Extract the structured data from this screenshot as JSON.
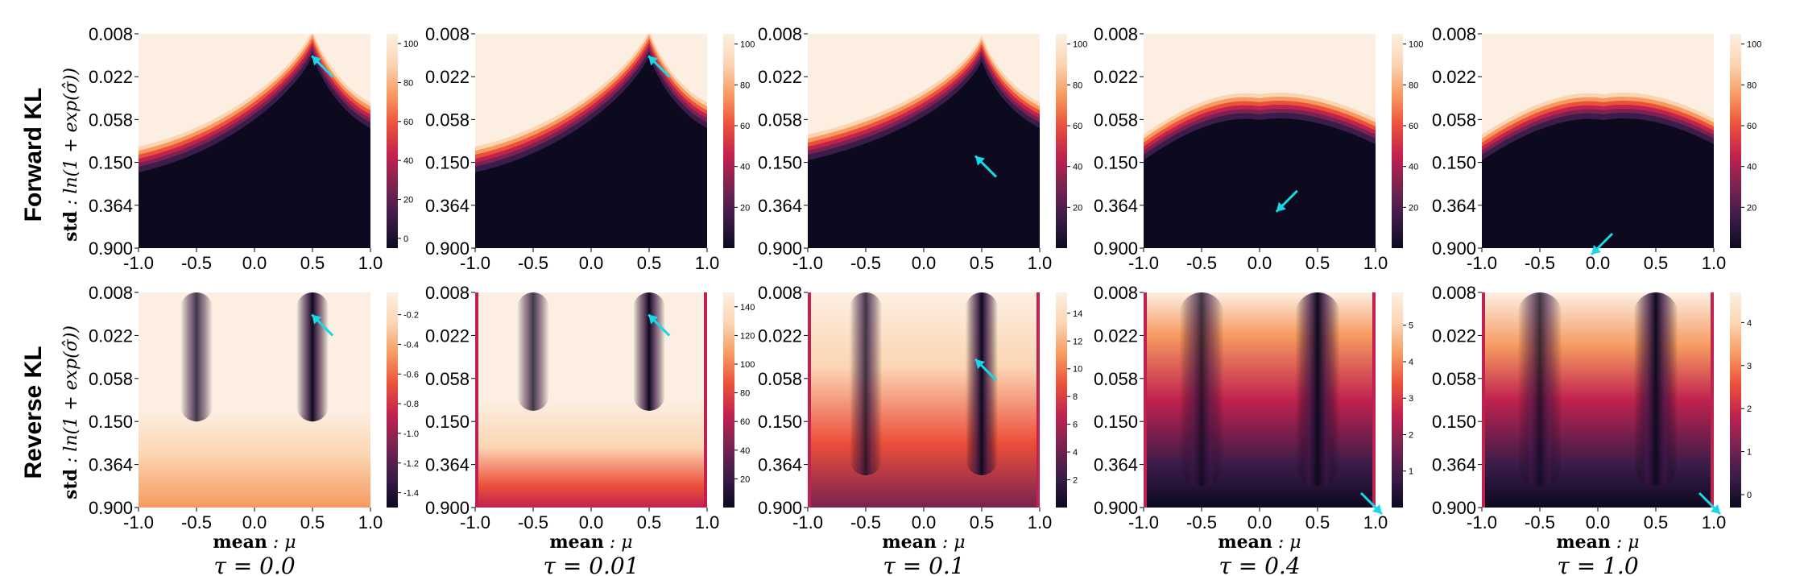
{
  "rows": [
    {
      "label": "Forward KL"
    },
    {
      "label": "Reverse KL"
    }
  ],
  "ylabel_bold": "std",
  "ylabel_math": " : ln(1 + exp(σ̂))",
  "xlabel_bold": "mean",
  "xlabel_math": " : μ",
  "tau_labels": [
    "τ = 0.0",
    "τ = 0.01",
    "τ = 0.1",
    "τ = 0.4",
    "τ = 1.0"
  ],
  "arrow_color": "#19d8e6",
  "colormap": [
    "#0d0a1f",
    "#3b1c4a",
    "#7a2350",
    "#c0224f",
    "#ec4f3a",
    "#f79a60",
    "#fbd5b3",
    "#fcefe2"
  ],
  "chart_data": [
    {
      "type": "heatmap",
      "row": "Forward KL",
      "tau": 0.0,
      "xlim": [
        -1.0,
        1.0
      ],
      "x_ticks": [
        "-1.0",
        "-0.5",
        "0.0",
        "0.5",
        "1.0"
      ],
      "y_ticks": [
        "0.008",
        "0.022",
        "0.058",
        "0.150",
        "0.364",
        "0.900"
      ],
      "colorbar": {
        "min": -5,
        "max": 105,
        "ticks": [
          "0",
          "20",
          "40",
          "60",
          "80",
          "100"
        ]
      },
      "arrow": {
        "x": 0.55,
        "y": "0.015",
        "direction": "up-left"
      }
    },
    {
      "type": "heatmap",
      "row": "Forward KL",
      "tau": 0.01,
      "xlim": [
        -1.0,
        1.0
      ],
      "x_ticks": [
        "-1.0",
        "-0.5",
        "0.0",
        "0.5",
        "1.0"
      ],
      "y_ticks": [
        "0.008",
        "0.022",
        "0.058",
        "0.150",
        "0.364",
        "0.900"
      ],
      "colorbar": {
        "min": 0,
        "max": 105,
        "ticks": [
          "20",
          "40",
          "60",
          "80",
          "100"
        ]
      },
      "arrow": {
        "x": 0.55,
        "y": "0.015",
        "direction": "up-left"
      }
    },
    {
      "type": "heatmap",
      "row": "Forward KL",
      "tau": 0.1,
      "xlim": [
        -1.0,
        1.0
      ],
      "x_ticks": [
        "-1.0",
        "-0.5",
        "0.0",
        "0.5",
        "1.0"
      ],
      "y_ticks": [
        "0.008",
        "0.022",
        "0.058",
        "0.150",
        "0.364",
        "0.900"
      ],
      "colorbar": {
        "min": 0,
        "max": 105,
        "ticks": [
          "20",
          "40",
          "60",
          "80",
          "100"
        ]
      },
      "arrow": {
        "x": 0.5,
        "y": "0.150",
        "direction": "up-left"
      }
    },
    {
      "type": "heatmap",
      "row": "Forward KL",
      "tau": 0.4,
      "xlim": [
        -1.0,
        1.0
      ],
      "x_ticks": [
        "-1.0",
        "-0.5",
        "0.0",
        "0.5",
        "1.0"
      ],
      "y_ticks": [
        "0.008",
        "0.022",
        "0.058",
        "0.150",
        "0.364",
        "0.900"
      ],
      "colorbar": {
        "min": 0,
        "max": 105,
        "ticks": [
          "20",
          "40",
          "60",
          "80",
          "100"
        ]
      },
      "arrow": {
        "x": 0.2,
        "y": "0.364",
        "direction": "down-left"
      }
    },
    {
      "type": "heatmap",
      "row": "Forward KL",
      "tau": 1.0,
      "xlim": [
        -1.0,
        1.0
      ],
      "x_ticks": [
        "-1.0",
        "-0.5",
        "0.0",
        "0.5",
        "1.0"
      ],
      "y_ticks": [
        "0.008",
        "0.022",
        "0.058",
        "0.150",
        "0.364",
        "0.900"
      ],
      "colorbar": {
        "min": 0,
        "max": 105,
        "ticks": [
          "20",
          "40",
          "60",
          "80",
          "100"
        ]
      },
      "arrow": {
        "x": 0.0,
        "y": "0.900",
        "direction": "down-left"
      }
    },
    {
      "type": "heatmap",
      "row": "Reverse KL",
      "tau": 0.0,
      "xlim": [
        -1.0,
        1.0
      ],
      "x_ticks": [
        "-1.0",
        "-0.5",
        "0.0",
        "0.5",
        "1.0"
      ],
      "y_ticks": [
        "0.008",
        "0.022",
        "0.058",
        "0.150",
        "0.364",
        "0.900"
      ],
      "colorbar": {
        "min": -1.5,
        "max": -0.05,
        "ticks": [
          "-0.2",
          "-0.4",
          "-0.6",
          "-0.8",
          "-1.0",
          "-1.2",
          "-1.4"
        ]
      },
      "arrow": {
        "x": 0.55,
        "y": "0.015",
        "direction": "up-left"
      }
    },
    {
      "type": "heatmap",
      "row": "Reverse KL",
      "tau": 0.01,
      "xlim": [
        -1.0,
        1.0
      ],
      "x_ticks": [
        "-1.0",
        "-0.5",
        "0.0",
        "0.5",
        "1.0"
      ],
      "y_ticks": [
        "0.008",
        "0.022",
        "0.058",
        "0.150",
        "0.364",
        "0.900"
      ],
      "colorbar": {
        "min": 0,
        "max": 150,
        "ticks": [
          "20",
          "40",
          "60",
          "80",
          "100",
          "120",
          "140"
        ]
      },
      "arrow": {
        "x": 0.55,
        "y": "0.015",
        "direction": "up-left"
      }
    },
    {
      "type": "heatmap",
      "row": "Reverse KL",
      "tau": 0.1,
      "xlim": [
        -1.0,
        1.0
      ],
      "x_ticks": [
        "-1.0",
        "-0.5",
        "0.0",
        "0.5",
        "1.0"
      ],
      "y_ticks": [
        "0.008",
        "0.022",
        "0.058",
        "0.150",
        "0.364",
        "0.900"
      ],
      "colorbar": {
        "min": 0,
        "max": 15.5,
        "ticks": [
          "2",
          "4",
          "6",
          "8",
          "10",
          "12",
          "14"
        ]
      },
      "arrow": {
        "x": 0.5,
        "y": "0.040",
        "direction": "up-left"
      }
    },
    {
      "type": "heatmap",
      "row": "Reverse KL",
      "tau": 0.4,
      "xlim": [
        -1.0,
        1.0
      ],
      "x_ticks": [
        "-1.0",
        "-0.5",
        "0.0",
        "0.5",
        "1.0"
      ],
      "y_ticks": [
        "0.008",
        "0.022",
        "0.058",
        "0.150",
        "0.364",
        "0.900"
      ],
      "colorbar": {
        "min": 0,
        "max": 5.9,
        "ticks": [
          "1",
          "2",
          "3",
          "4",
          "5"
        ]
      },
      "arrow": {
        "x": 1.0,
        "y": "0.900",
        "direction": "down-right"
      }
    },
    {
      "type": "heatmap",
      "row": "Reverse KL",
      "tau": 1.0,
      "xlim": [
        -1.0,
        1.0
      ],
      "x_ticks": [
        "-1.0",
        "-0.5",
        "0.0",
        "0.5",
        "1.0"
      ],
      "y_ticks": [
        "0.008",
        "0.022",
        "0.058",
        "0.150",
        "0.364",
        "0.900"
      ],
      "colorbar": {
        "min": -0.3,
        "max": 4.7,
        "ticks": [
          "0",
          "1",
          "2",
          "3",
          "4"
        ]
      },
      "arrow": {
        "x": 1.0,
        "y": "0.900",
        "direction": "down-right"
      }
    }
  ]
}
